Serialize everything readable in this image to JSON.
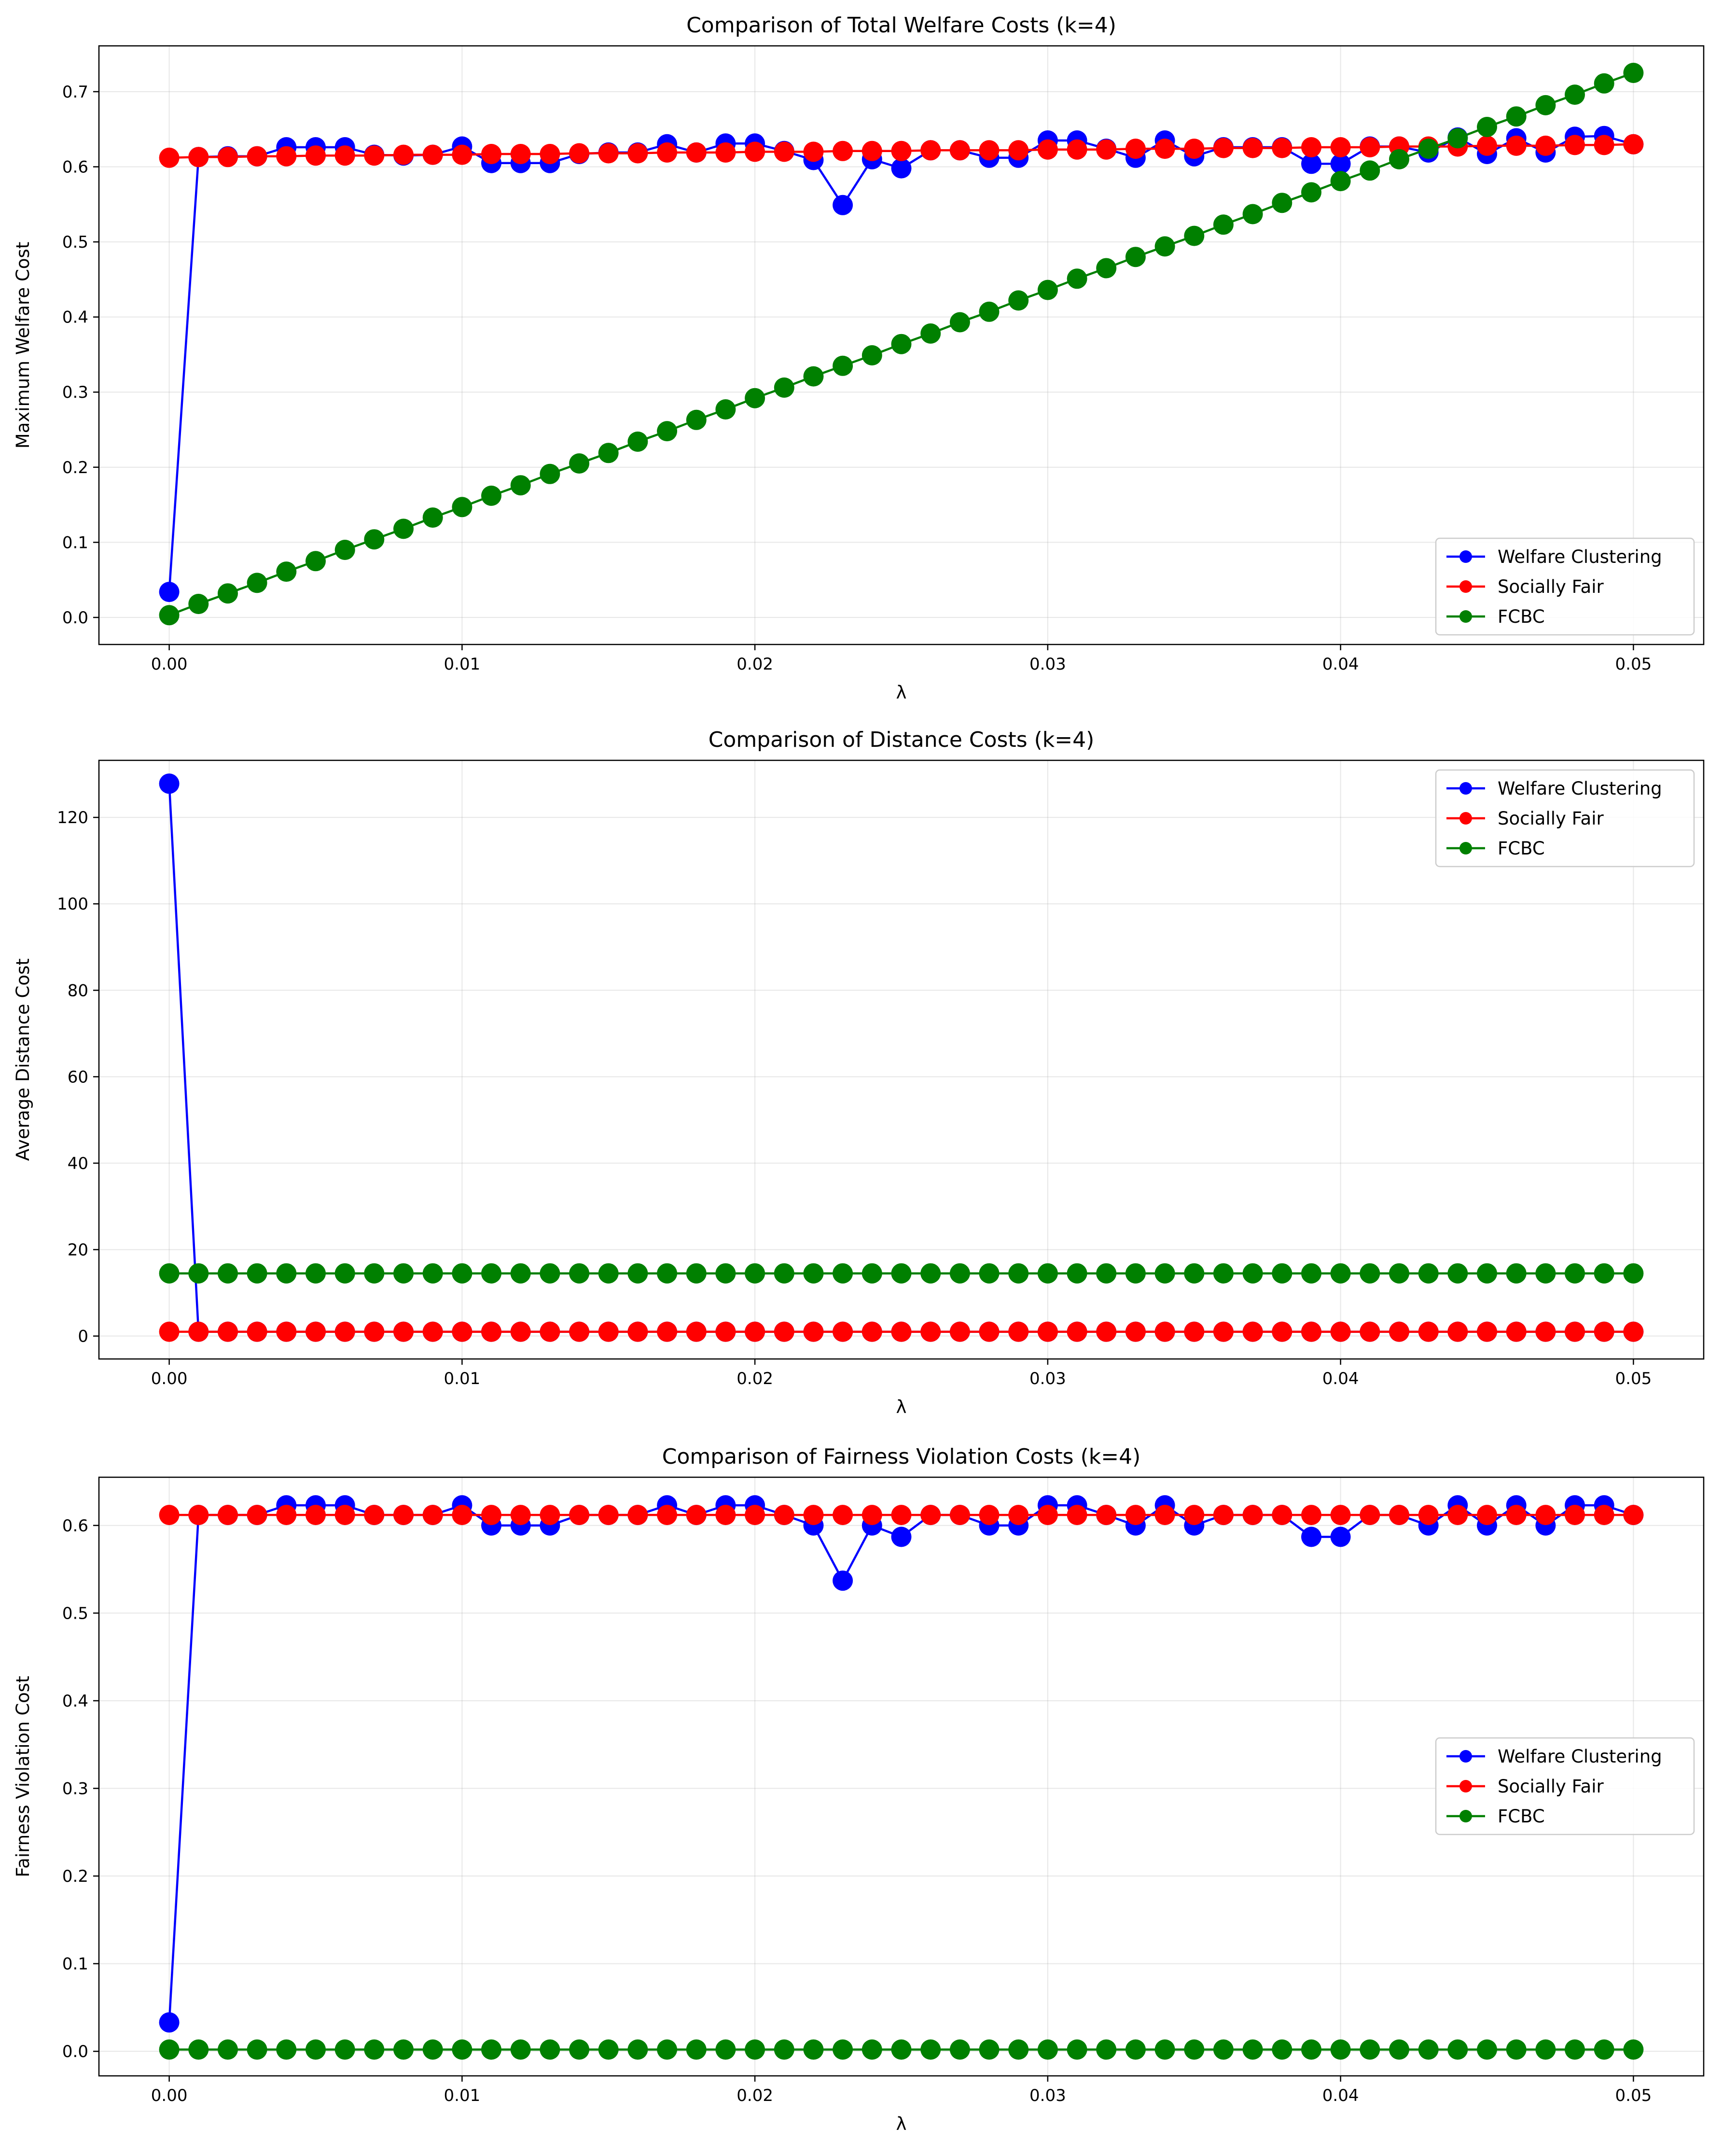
{
  "chart_data": [
    {
      "type": "line",
      "title": "Comparison of Total Welfare Costs (k=4)",
      "xlabel": "λ",
      "ylabel": "Maximum Welfare Cost",
      "xlim": [
        -0.0024,
        0.0524
      ],
      "ylim": [
        -0.036,
        0.761
      ],
      "xticks": [
        0.0,
        0.01,
        0.02,
        0.03,
        0.04,
        0.05
      ],
      "xtick_labels": [
        "0.00",
        "0.01",
        "0.02",
        "0.03",
        "0.04",
        "0.05"
      ],
      "yticks": [
        0.0,
        0.1,
        0.2,
        0.3,
        0.4,
        0.5,
        0.6,
        0.7
      ],
      "ytick_labels": [
        "0.0",
        "0.1",
        "0.2",
        "0.3",
        "0.4",
        "0.5",
        "0.6",
        "0.7"
      ],
      "grid": true,
      "legend_position": "lower-right",
      "x": [
        0.0,
        0.001,
        0.002,
        0.003,
        0.004,
        0.005,
        0.006,
        0.007,
        0.008,
        0.009,
        0.01,
        0.011,
        0.012,
        0.013,
        0.014,
        0.015,
        0.016,
        0.017,
        0.018,
        0.019,
        0.02,
        0.021,
        0.022,
        0.023,
        0.024,
        0.025,
        0.026,
        0.027,
        0.028,
        0.029,
        0.03,
        0.031,
        0.032,
        0.033,
        0.034,
        0.035,
        0.036,
        0.037,
        0.038,
        0.039,
        0.04,
        0.041,
        0.042,
        0.043,
        0.044,
        0.045,
        0.046,
        0.047,
        0.048,
        0.049,
        0.05
      ],
      "series": [
        {
          "name": "Welfare Clustering",
          "color": "#0000ff",
          "values": [
            0.034,
            0.613,
            0.614,
            0.614,
            0.626,
            0.626,
            0.626,
            0.616,
            0.615,
            0.616,
            0.627,
            0.605,
            0.605,
            0.605,
            0.617,
            0.619,
            0.619,
            0.63,
            0.619,
            0.631,
            0.631,
            0.621,
            0.609,
            0.549,
            0.61,
            0.598,
            0.622,
            0.622,
            0.612,
            0.612,
            0.635,
            0.635,
            0.624,
            0.612,
            0.635,
            0.614,
            0.626,
            0.626,
            0.626,
            0.604,
            0.604,
            0.627,
            0.627,
            0.619,
            0.639,
            0.617,
            0.638,
            0.619,
            0.64,
            0.641,
            0.63
          ]
        },
        {
          "name": "Socially Fair",
          "color": "#ff0000",
          "values": [
            0.612,
            0.613,
            0.613,
            0.614,
            0.614,
            0.615,
            0.615,
            0.615,
            0.616,
            0.616,
            0.616,
            0.617,
            0.617,
            0.617,
            0.618,
            0.618,
            0.618,
            0.619,
            0.619,
            0.619,
            0.62,
            0.62,
            0.62,
            0.621,
            0.621,
            0.621,
            0.622,
            0.622,
            0.622,
            0.622,
            0.623,
            0.623,
            0.623,
            0.624,
            0.624,
            0.624,
            0.625,
            0.625,
            0.625,
            0.626,
            0.626,
            0.626,
            0.627,
            0.627,
            0.627,
            0.628,
            0.628,
            0.628,
            0.629,
            0.629,
            0.63
          ]
        },
        {
          "name": "FCBC",
          "color": "#008000",
          "values": [
            0.003,
            0.018,
            0.032,
            0.046,
            0.061,
            0.075,
            0.09,
            0.104,
            0.118,
            0.133,
            0.147,
            0.162,
            0.176,
            0.191,
            0.205,
            0.219,
            0.234,
            0.248,
            0.263,
            0.277,
            0.292,
            0.306,
            0.321,
            0.335,
            0.349,
            0.364,
            0.378,
            0.393,
            0.407,
            0.422,
            0.436,
            0.451,
            0.465,
            0.48,
            0.494,
            0.508,
            0.523,
            0.537,
            0.552,
            0.566,
            0.581,
            0.595,
            0.61,
            0.624,
            0.638,
            0.653,
            0.667,
            0.682,
            0.696,
            0.711,
            0.725
          ]
        }
      ]
    },
    {
      "type": "line",
      "title": "Comparison of Distance Costs (k=4)",
      "xlabel": "λ",
      "ylabel": "Average Distance Cost",
      "xlim": [
        -0.0024,
        0.0524
      ],
      "ylim": [
        -5.3,
        133.2
      ],
      "xticks": [
        0.0,
        0.01,
        0.02,
        0.03,
        0.04,
        0.05
      ],
      "xtick_labels": [
        "0.00",
        "0.01",
        "0.02",
        "0.03",
        "0.04",
        "0.05"
      ],
      "yticks": [
        0,
        20,
        40,
        60,
        80,
        100,
        120
      ],
      "ytick_labels": [
        "0",
        "20",
        "40",
        "60",
        "80",
        "100",
        "120"
      ],
      "grid": true,
      "legend_position": "top-right",
      "x": [
        0.0,
        0.001,
        0.002,
        0.003,
        0.004,
        0.005,
        0.006,
        0.007,
        0.008,
        0.009,
        0.01,
        0.011,
        0.012,
        0.013,
        0.014,
        0.015,
        0.016,
        0.017,
        0.018,
        0.019,
        0.02,
        0.021,
        0.022,
        0.023,
        0.024,
        0.025,
        0.026,
        0.027,
        0.028,
        0.029,
        0.03,
        0.031,
        0.032,
        0.033,
        0.034,
        0.035,
        0.036,
        0.037,
        0.038,
        0.039,
        0.04,
        0.041,
        0.042,
        0.043,
        0.044,
        0.045,
        0.046,
        0.047,
        0.048,
        0.049,
        0.05
      ],
      "series": [
        {
          "name": "Welfare Clustering",
          "color": "#0000ff",
          "values": [
            127.8,
            1.0,
            1.0,
            1.0,
            1.0,
            1.0,
            1.0,
            1.0,
            1.0,
            1.0,
            1.0,
            1.0,
            1.0,
            1.0,
            1.0,
            1.0,
            1.0,
            1.0,
            1.0,
            1.0,
            1.0,
            1.0,
            1.0,
            1.0,
            1.0,
            1.0,
            1.0,
            1.0,
            1.0,
            1.0,
            1.0,
            1.0,
            1.0,
            1.0,
            1.0,
            1.0,
            1.0,
            1.0,
            1.0,
            1.0,
            1.0,
            1.0,
            1.0,
            1.0,
            1.0,
            1.0,
            1.0,
            1.0,
            1.0,
            1.0,
            1.0
          ]
        },
        {
          "name": "Socially Fair",
          "color": "#ff0000",
          "values": [
            1.0,
            1.0,
            1.0,
            1.0,
            1.0,
            1.0,
            1.0,
            1.0,
            1.0,
            1.0,
            1.0,
            1.0,
            1.0,
            1.0,
            1.0,
            1.0,
            1.0,
            1.0,
            1.0,
            1.0,
            1.0,
            1.0,
            1.0,
            1.0,
            1.0,
            1.0,
            1.0,
            1.0,
            1.0,
            1.0,
            1.0,
            1.0,
            1.0,
            1.0,
            1.0,
            1.0,
            1.0,
            1.0,
            1.0,
            1.0,
            1.0,
            1.0,
            1.0,
            1.0,
            1.0,
            1.0,
            1.0,
            1.0,
            1.0,
            1.0,
            1.0
          ]
        },
        {
          "name": "FCBC",
          "color": "#008000",
          "values": [
            14.5,
            14.5,
            14.5,
            14.5,
            14.5,
            14.5,
            14.5,
            14.5,
            14.5,
            14.5,
            14.5,
            14.5,
            14.5,
            14.5,
            14.5,
            14.5,
            14.5,
            14.5,
            14.5,
            14.5,
            14.5,
            14.5,
            14.5,
            14.5,
            14.5,
            14.5,
            14.5,
            14.5,
            14.5,
            14.5,
            14.5,
            14.5,
            14.5,
            14.5,
            14.5,
            14.5,
            14.5,
            14.5,
            14.5,
            14.5,
            14.5,
            14.5,
            14.5,
            14.5,
            14.5,
            14.5,
            14.5,
            14.5,
            14.5,
            14.5,
            14.5
          ]
        }
      ]
    },
    {
      "type": "line",
      "title": "Comparison of Fairness Violation Costs (k=4)",
      "xlabel": "λ",
      "ylabel": "Fairness Violation Cost",
      "xlim": [
        -0.0024,
        0.0524
      ],
      "ylim": [
        -0.028,
        0.655
      ],
      "xticks": [
        0.0,
        0.01,
        0.02,
        0.03,
        0.04,
        0.05
      ],
      "xtick_labels": [
        "0.00",
        "0.01",
        "0.02",
        "0.03",
        "0.04",
        "0.05"
      ],
      "yticks": [
        0.0,
        0.1,
        0.2,
        0.3,
        0.4,
        0.5,
        0.6
      ],
      "ytick_labels": [
        "0.0",
        "0.1",
        "0.2",
        "0.3",
        "0.4",
        "0.5",
        "0.6"
      ],
      "grid": true,
      "legend_position": "center-right",
      "x": [
        0.0,
        0.001,
        0.002,
        0.003,
        0.004,
        0.005,
        0.006,
        0.007,
        0.008,
        0.009,
        0.01,
        0.011,
        0.012,
        0.013,
        0.014,
        0.015,
        0.016,
        0.017,
        0.018,
        0.019,
        0.02,
        0.021,
        0.022,
        0.023,
        0.024,
        0.025,
        0.026,
        0.027,
        0.028,
        0.029,
        0.03,
        0.031,
        0.032,
        0.033,
        0.034,
        0.035,
        0.036,
        0.037,
        0.038,
        0.039,
        0.04,
        0.041,
        0.042,
        0.043,
        0.044,
        0.045,
        0.046,
        0.047,
        0.048,
        0.049,
        0.05
      ],
      "series": [
        {
          "name": "Welfare Clustering",
          "color": "#0000ff",
          "values": [
            0.033,
            0.612,
            0.612,
            0.612,
            0.623,
            0.623,
            0.623,
            0.612,
            0.612,
            0.612,
            0.623,
            0.6,
            0.6,
            0.6,
            0.612,
            0.612,
            0.612,
            0.623,
            0.612,
            0.623,
            0.623,
            0.612,
            0.6,
            0.537,
            0.6,
            0.587,
            0.612,
            0.612,
            0.6,
            0.6,
            0.623,
            0.623,
            0.612,
            0.6,
            0.623,
            0.6,
            0.612,
            0.612,
            0.612,
            0.587,
            0.587,
            0.612,
            0.612,
            0.6,
            0.623,
            0.6,
            0.623,
            0.6,
            0.623,
            0.623,
            0.612
          ]
        },
        {
          "name": "Socially Fair",
          "color": "#ff0000",
          "values": [
            0.612,
            0.612,
            0.612,
            0.612,
            0.612,
            0.612,
            0.612,
            0.612,
            0.612,
            0.612,
            0.612,
            0.612,
            0.612,
            0.612,
            0.612,
            0.612,
            0.612,
            0.612,
            0.612,
            0.612,
            0.612,
            0.612,
            0.612,
            0.612,
            0.612,
            0.612,
            0.612,
            0.612,
            0.612,
            0.612,
            0.612,
            0.612,
            0.612,
            0.612,
            0.612,
            0.612,
            0.612,
            0.612,
            0.612,
            0.612,
            0.612,
            0.612,
            0.612,
            0.612,
            0.612,
            0.612,
            0.612,
            0.612,
            0.612,
            0.612,
            0.612
          ]
        },
        {
          "name": "FCBC",
          "color": "#008000",
          "values": [
            0.002,
            0.002,
            0.002,
            0.002,
            0.002,
            0.002,
            0.002,
            0.002,
            0.002,
            0.002,
            0.002,
            0.002,
            0.002,
            0.002,
            0.002,
            0.002,
            0.002,
            0.002,
            0.002,
            0.002,
            0.002,
            0.002,
            0.002,
            0.002,
            0.002,
            0.002,
            0.002,
            0.002,
            0.002,
            0.002,
            0.002,
            0.002,
            0.002,
            0.002,
            0.002,
            0.002,
            0.002,
            0.002,
            0.002,
            0.002,
            0.002,
            0.002,
            0.002,
            0.002,
            0.002,
            0.002,
            0.002,
            0.002,
            0.002,
            0.002,
            0.002
          ]
        }
      ]
    }
  ]
}
